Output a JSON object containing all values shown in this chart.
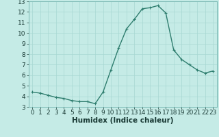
{
  "x": [
    0,
    1,
    2,
    3,
    4,
    5,
    6,
    7,
    8,
    9,
    10,
    11,
    12,
    13,
    14,
    15,
    16,
    17,
    18,
    19,
    20,
    21,
    22,
    23
  ],
  "y": [
    4.4,
    4.3,
    4.1,
    3.9,
    3.8,
    3.6,
    3.5,
    3.5,
    3.3,
    4.4,
    6.5,
    8.6,
    10.4,
    11.3,
    12.3,
    12.4,
    12.6,
    11.9,
    8.4,
    7.5,
    7.0,
    6.5,
    6.2,
    6.4
  ],
  "line_color": "#2e7d6e",
  "marker": "+",
  "marker_color": "#2e7d6e",
  "bg_color": "#c5ebe6",
  "grid_color": "#a8d8d2",
  "xlabel": "Humidex (Indice chaleur)",
  "xlim": [
    -0.5,
    23.5
  ],
  "ylim": [
    3,
    13
  ],
  "yticks": [
    3,
    4,
    5,
    6,
    7,
    8,
    9,
    10,
    11,
    12,
    13
  ],
  "xticks": [
    0,
    1,
    2,
    3,
    4,
    5,
    6,
    7,
    8,
    9,
    10,
    11,
    12,
    13,
    14,
    15,
    16,
    17,
    18,
    19,
    20,
    21,
    22,
    23
  ],
  "tick_label_fontsize": 6.5,
  "xlabel_fontsize": 7.5,
  "linewidth": 1.0,
  "markersize": 3.5
}
